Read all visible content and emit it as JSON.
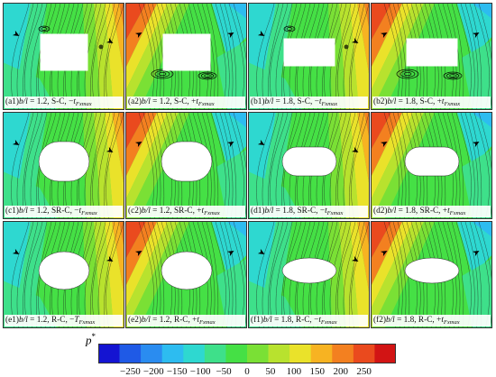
{
  "panels": [
    {
      "prefix": "(a1)",
      "ratio": "b/l",
      "text": " = 1.2, S-C, ",
      "sign": "−",
      "var": "t",
      "sub": "Fxmax",
      "shape": "rect",
      "flow": "bl"
    },
    {
      "prefix": "(a2)",
      "ratio": "b/l",
      "text": " = 1.2, S-C, ",
      "sign": "+",
      "var": "t",
      "sub": "Fxmax",
      "shape": "rect",
      "flow": "tl"
    },
    {
      "prefix": "(b1)",
      "ratio": "b/l",
      "text": " = 1.8, S-C, ",
      "sign": "−",
      "var": "t",
      "sub": "Fxmax",
      "shape": "rect-wide",
      "flow": "bl"
    },
    {
      "prefix": "(b2)",
      "ratio": "b/l",
      "text": " = 1.8, S-C, ",
      "sign": "+",
      "var": "t",
      "sub": "Fxmax",
      "shape": "rect-wide",
      "flow": "tl"
    },
    {
      "prefix": "(c1)",
      "ratio": "b/l",
      "text": " = 1.2, SR-C, ",
      "sign": "−",
      "var": "t",
      "sub": "Fxmax",
      "shape": "round",
      "flow": "bl"
    },
    {
      "prefix": "(c2)",
      "ratio": "b/l",
      "text": " = 1.2, SR-C, ",
      "sign": "+",
      "var": "t",
      "sub": "Fxmax",
      "shape": "round",
      "flow": "tl"
    },
    {
      "prefix": "(d1)",
      "ratio": "b/l",
      "text": " = 1.8, SR-C, ",
      "sign": "−",
      "var": "t",
      "sub": "Fxmax",
      "shape": "round-wide",
      "flow": "bl"
    },
    {
      "prefix": "(d2)",
      "ratio": "b/l",
      "text": " = 1.8, SR-C, ",
      "sign": "+",
      "var": "t",
      "sub": "Fxmax",
      "shape": "round-wide",
      "flow": "tl"
    },
    {
      "prefix": "(e1)",
      "ratio": "b/l",
      "text": " = 1.2, R-C, ",
      "sign": "−",
      "var": "T",
      "sub": "Fxmax",
      "shape": "ellipse",
      "flow": "bl"
    },
    {
      "prefix": "(e2)",
      "ratio": "b/l",
      "text": " = 1.2, R-C, ",
      "sign": "+",
      "var": "t",
      "sub": "Fxmax",
      "shape": "ellipse",
      "flow": "tl"
    },
    {
      "prefix": "(f1)",
      "ratio": "b/l",
      "text": " = 1.8, R-C, ",
      "sign": "−",
      "var": "t",
      "sub": "Fxmax",
      "shape": "ellipse-wide",
      "flow": "bl"
    },
    {
      "prefix": "(f2)",
      "ratio": "b/l",
      "text": " = 1.8, R-C, ",
      "sign": "+",
      "var": "t",
      "sub": "Fxmax",
      "shape": "ellipse-wide",
      "flow": "tl"
    }
  ],
  "legend": {
    "label": "p",
    "label_sup": "*",
    "ticks": [
      "−250",
      "−200",
      "−150",
      "−100",
      "−50",
      "0",
      "50",
      "100",
      "150",
      "200",
      "250"
    ],
    "colors": [
      "#1414d2",
      "#1f5ae6",
      "#2a8cf0",
      "#2dbcf0",
      "#2ed8d0",
      "#3ee08a",
      "#45e045",
      "#7ae035",
      "#b8e22e",
      "#eae22a",
      "#f7b322",
      "#f38020",
      "#ea4a1e",
      "#d21414"
    ]
  }
}
